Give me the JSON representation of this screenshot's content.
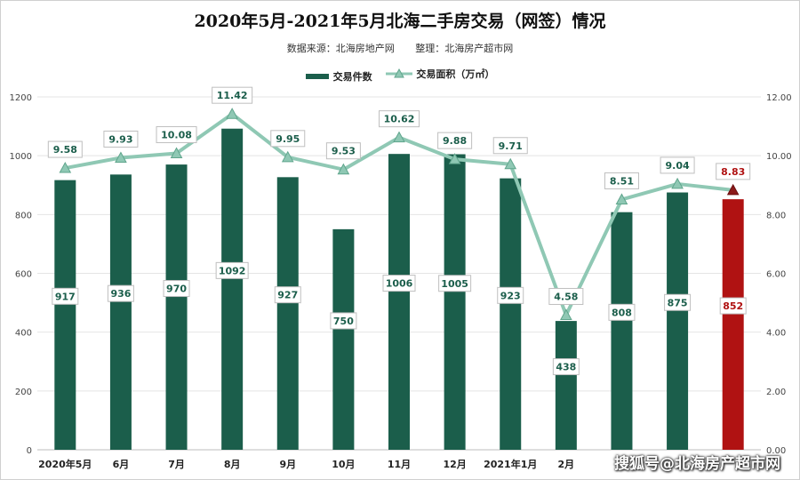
{
  "title": "2020年5月-2021年5月北海二手房交易（网签）情况",
  "subtitle": {
    "source": "数据来源：北海房地产网",
    "compiler": "整理：北海房产超市网"
  },
  "watermark": "搜狐号@北海房产超市网",
  "chart_data": {
    "type": "bar+line",
    "categories": [
      "2020年5月",
      "6月",
      "7月",
      "8月",
      "9月",
      "10月",
      "11月",
      "12月",
      "2021年1月",
      "2月",
      "",
      "",
      ""
    ],
    "series": [
      {
        "name": "交易件数",
        "type": "bar",
        "axis": "left",
        "values": [
          917,
          936,
          970,
          1092,
          927,
          750,
          1006,
          1005,
          923,
          438,
          808,
          875,
          852
        ],
        "labels": [
          "917",
          "936",
          "970",
          "1092",
          "927",
          "750",
          "1006",
          "1005",
          "923",
          "438",
          "808",
          "875",
          "852"
        ],
        "color": "#1b5e4b",
        "highlight_color": "#b01212",
        "highlight_index": 12
      },
      {
        "name": "交易面积（万㎡）",
        "type": "line",
        "axis": "right",
        "values": [
          9.58,
          9.93,
          10.08,
          11.42,
          9.95,
          9.53,
          10.62,
          9.88,
          9.71,
          4.58,
          8.51,
          9.04,
          8.83
        ],
        "labels": [
          "9.58",
          "9.93",
          "10.08",
          "11.42",
          "9.95",
          "9.53",
          "10.62",
          "9.88",
          "9.71",
          "4.58",
          "8.51",
          "9.04",
          "8.83"
        ],
        "color": "#8fc8b4",
        "highlight_color": "#b01212",
        "highlight_index": 12
      }
    ],
    "y_left": {
      "min": 0,
      "max": 1200,
      "ticks": [
        "0",
        "200",
        "400",
        "600",
        "800",
        "1000",
        "1200"
      ]
    },
    "y_right": {
      "min": 0,
      "max": 12,
      "ticks": [
        "0.00",
        "2.00",
        "4.00",
        "6.00",
        "8.00",
        "10.00",
        "12.00"
      ]
    },
    "grid": true,
    "legend_position": "top-center"
  }
}
